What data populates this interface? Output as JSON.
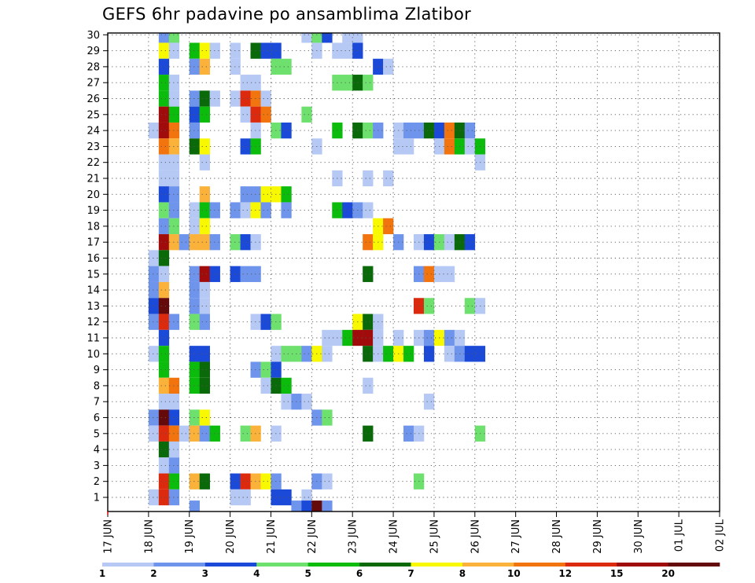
{
  "chart_data": {
    "type": "heatmap",
    "title": "GEFS 6hr padavine po ansamblima Zlatibor",
    "xlabel": "",
    "ylabel": "",
    "x_tick_labels": [
      "17 JUN",
      "18 JUN",
      "19 JUN",
      "20 JUN",
      "21 JUN",
      "22 JUN",
      "23 JUN",
      "24 JUN",
      "25 JUN",
      "26 JUN",
      "27 JUN",
      "28 JUN",
      "29 JUN",
      "30 JUN",
      "01 JUL",
      "02 JUL"
    ],
    "y_members": [
      1,
      2,
      3,
      4,
      5,
      6,
      7,
      8,
      9,
      10,
      11,
      12,
      13,
      14,
      15,
      16,
      17,
      18,
      19,
      20,
      21,
      22,
      23,
      24,
      25,
      26,
      27,
      28,
      29,
      30
    ],
    "y_range": [
      0.3,
      30
    ],
    "steps_per_day": 4,
    "grid": true,
    "color_levels": [
      1,
      2,
      3,
      4,
      5,
      6,
      7,
      8,
      10,
      12,
      15,
      20
    ],
    "colorbar_labels": [
      "1",
      "2",
      "3",
      "4",
      "5",
      "6",
      "7",
      "8",
      "10",
      "12",
      "15",
      "20"
    ],
    "colors": [
      "#b6c8f4",
      "#6e94ec",
      "#1c4ad8",
      "#6ee06e",
      "#0cbc0c",
      "#0a6a0a",
      "#f8f800",
      "#fab23a",
      "#f2740e",
      "#dc2a0e",
      "#a00c0c",
      "#640a0a"
    ],
    "cells": [
      [
        30,
        0,
        5,
        2
      ],
      [
        30,
        0,
        6,
        4
      ],
      [
        30,
        0,
        19,
        1
      ],
      [
        30,
        0,
        20,
        4
      ],
      [
        30,
        0,
        21,
        3
      ],
      [
        30,
        0,
        23,
        1
      ],
      [
        30,
        0,
        24,
        1
      ],
      [
        29,
        0,
        5,
        7
      ],
      [
        29,
        0,
        6,
        1
      ],
      [
        29,
        0,
        8,
        5
      ],
      [
        29,
        0,
        9,
        7
      ],
      [
        29,
        0,
        10,
        1
      ],
      [
        29,
        0,
        12,
        1
      ],
      [
        29,
        0,
        14,
        6
      ],
      [
        29,
        0,
        15,
        3
      ],
      [
        29,
        0,
        16,
        3
      ],
      [
        29,
        0,
        20,
        1
      ],
      [
        29,
        0,
        22,
        1
      ],
      [
        29,
        0,
        23,
        1
      ],
      [
        29,
        0,
        24,
        3
      ],
      [
        28,
        0,
        5,
        3
      ],
      [
        28,
        0,
        8,
        2
      ],
      [
        28,
        0,
        9,
        8
      ],
      [
        28,
        0,
        12,
        1
      ],
      [
        28,
        0,
        16,
        4
      ],
      [
        28,
        0,
        17,
        4
      ],
      [
        28,
        0,
        26,
        3
      ],
      [
        28,
        0,
        27,
        1
      ],
      [
        27,
        0,
        5,
        5
      ],
      [
        27,
        0,
        6,
        1
      ],
      [
        27,
        0,
        13,
        1
      ],
      [
        27,
        0,
        14,
        1
      ],
      [
        27,
        0,
        22,
        4
      ],
      [
        27,
        0,
        23,
        4
      ],
      [
        27,
        0,
        24,
        6
      ],
      [
        27,
        0,
        25,
        4
      ],
      [
        26,
        0,
        5,
        5
      ],
      [
        26,
        0,
        6,
        1
      ],
      [
        26,
        0,
        8,
        2
      ],
      [
        26,
        0,
        9,
        6
      ],
      [
        26,
        0,
        10,
        1
      ],
      [
        26,
        0,
        12,
        1
      ],
      [
        26,
        0,
        13,
        10
      ],
      [
        26,
        0,
        14,
        9
      ],
      [
        26,
        0,
        15,
        1
      ],
      [
        25,
        0,
        5,
        11
      ],
      [
        25,
        0,
        6,
        5
      ],
      [
        25,
        0,
        8,
        3
      ],
      [
        25,
        0,
        9,
        5
      ],
      [
        25,
        0,
        13,
        1
      ],
      [
        25,
        0,
        14,
        10
      ],
      [
        25,
        0,
        15,
        9
      ],
      [
        25,
        0,
        19,
        4
      ],
      [
        24,
        0,
        4,
        1
      ],
      [
        24,
        0,
        5,
        11
      ],
      [
        24,
        0,
        6,
        9
      ],
      [
        24,
        0,
        8,
        2
      ],
      [
        24,
        0,
        14,
        1
      ],
      [
        24,
        0,
        16,
        4
      ],
      [
        24,
        0,
        17,
        3
      ],
      [
        24,
        0,
        22,
        5
      ],
      [
        24,
        0,
        24,
        6
      ],
      [
        24,
        0,
        25,
        4
      ],
      [
        24,
        0,
        26,
        2
      ],
      [
        24,
        0,
        28,
        1
      ],
      [
        24,
        0,
        29,
        2
      ],
      [
        24,
        0,
        30,
        2
      ],
      [
        24,
        0,
        31,
        6
      ],
      [
        24,
        0,
        32,
        3
      ],
      [
        24,
        0,
        33,
        9
      ],
      [
        24,
        0,
        34,
        6
      ],
      [
        24,
        0,
        35,
        2
      ],
      [
        23,
        0,
        5,
        9
      ],
      [
        23,
        0,
        6,
        8
      ],
      [
        23,
        0,
        8,
        6
      ],
      [
        23,
        0,
        9,
        7
      ],
      [
        23,
        0,
        13,
        3
      ],
      [
        23,
        0,
        14,
        5
      ],
      [
        23,
        0,
        20,
        1
      ],
      [
        23,
        0,
        28,
        1
      ],
      [
        23,
        0,
        29,
        1
      ],
      [
        23,
        0,
        32,
        1
      ],
      [
        23,
        0,
        33,
        9
      ],
      [
        23,
        0,
        34,
        5
      ],
      [
        23,
        0,
        35,
        1
      ],
      [
        23,
        0,
        36,
        5
      ],
      [
        22,
        0,
        5,
        1
      ],
      [
        22,
        0,
        6,
        1
      ],
      [
        22,
        0,
        9,
        1
      ],
      [
        22,
        0,
        36,
        1
      ],
      [
        21,
        0,
        5,
        1
      ],
      [
        21,
        0,
        6,
        1
      ],
      [
        21,
        0,
        22,
        1
      ],
      [
        21,
        0,
        25,
        1
      ],
      [
        21,
        0,
        27,
        1
      ],
      [
        20,
        0,
        5,
        3
      ],
      [
        20,
        0,
        6,
        2
      ],
      [
        20,
        0,
        9,
        8
      ],
      [
        20,
        0,
        13,
        2
      ],
      [
        20,
        0,
        14,
        2
      ],
      [
        20,
        0,
        15,
        7
      ],
      [
        20,
        0,
        16,
        7
      ],
      [
        20,
        0,
        17,
        5
      ],
      [
        19,
        0,
        5,
        4
      ],
      [
        19,
        0,
        6,
        2
      ],
      [
        19,
        0,
        8,
        1
      ],
      [
        19,
        0,
        9,
        5
      ],
      [
        19,
        0,
        10,
        2
      ],
      [
        19,
        0,
        12,
        2
      ],
      [
        19,
        0,
        13,
        1
      ],
      [
        19,
        0,
        14,
        7
      ],
      [
        19,
        0,
        15,
        2
      ],
      [
        19,
        0,
        17,
        2
      ],
      [
        19,
        0,
        22,
        5
      ],
      [
        19,
        0,
        23,
        3
      ],
      [
        19,
        0,
        24,
        2
      ],
      [
        19,
        0,
        25,
        1
      ],
      [
        18,
        0,
        5,
        2
      ],
      [
        18,
        0,
        6,
        4
      ],
      [
        18,
        0,
        8,
        1
      ],
      [
        18,
        0,
        9,
        7
      ],
      [
        18,
        0,
        26,
        7
      ],
      [
        18,
        0,
        27,
        9
      ],
      [
        17,
        0,
        5,
        11
      ],
      [
        17,
        0,
        6,
        8
      ],
      [
        17,
        0,
        7,
        2
      ],
      [
        17,
        0,
        8,
        8
      ],
      [
        17,
        0,
        9,
        8
      ],
      [
        17,
        0,
        10,
        2
      ],
      [
        17,
        0,
        12,
        4
      ],
      [
        17,
        0,
        13,
        3
      ],
      [
        17,
        0,
        14,
        1
      ],
      [
        17,
        0,
        25,
        9
      ],
      [
        17,
        0,
        26,
        7
      ],
      [
        17,
        0,
        28,
        2
      ],
      [
        17,
        0,
        30,
        1
      ],
      [
        17,
        0,
        31,
        3
      ],
      [
        17,
        0,
        32,
        4
      ],
      [
        17,
        0,
        33,
        1
      ],
      [
        17,
        0,
        34,
        6
      ],
      [
        17,
        0,
        35,
        3
      ],
      [
        16,
        0,
        4,
        1
      ],
      [
        16,
        0,
        5,
        6
      ],
      [
        15,
        0,
        4,
        2
      ],
      [
        15,
        0,
        5,
        1
      ],
      [
        15,
        0,
        8,
        2
      ],
      [
        15,
        0,
        9,
        11
      ],
      [
        15,
        0,
        10,
        3
      ],
      [
        15,
        0,
        12,
        3
      ],
      [
        15,
        0,
        13,
        2
      ],
      [
        15,
        0,
        14,
        2
      ],
      [
        15,
        0,
        25,
        6
      ],
      [
        15,
        0,
        30,
        2
      ],
      [
        15,
        0,
        31,
        9
      ],
      [
        15,
        0,
        32,
        1
      ],
      [
        15,
        0,
        33,
        1
      ],
      [
        14,
        0,
        4,
        2
      ],
      [
        14,
        0,
        5,
        8
      ],
      [
        14,
        0,
        8,
        2
      ],
      [
        14,
        0,
        9,
        1
      ],
      [
        13,
        0,
        4,
        3
      ],
      [
        13,
        0,
        5,
        12
      ],
      [
        13,
        0,
        8,
        2
      ],
      [
        13,
        0,
        9,
        1
      ],
      [
        13,
        0,
        30,
        10
      ],
      [
        13,
        0,
        31,
        4
      ],
      [
        13,
        0,
        35,
        4
      ],
      [
        13,
        0,
        36,
        1
      ],
      [
        12,
        0,
        4,
        2
      ],
      [
        12,
        0,
        5,
        10
      ],
      [
        12,
        0,
        6,
        2
      ],
      [
        12,
        0,
        8,
        4
      ],
      [
        12,
        0,
        9,
        2
      ],
      [
        12,
        0,
        14,
        1
      ],
      [
        12,
        0,
        15,
        3
      ],
      [
        12,
        0,
        16,
        4
      ],
      [
        12,
        0,
        24,
        7
      ],
      [
        12,
        0,
        25,
        6
      ],
      [
        12,
        0,
        26,
        1
      ],
      [
        11,
        0,
        5,
        3
      ],
      [
        11,
        0,
        21,
        1
      ],
      [
        11,
        0,
        22,
        1
      ],
      [
        11,
        0,
        23,
        5
      ],
      [
        11,
        0,
        24,
        11
      ],
      [
        11,
        0,
        25,
        11
      ],
      [
        11,
        0,
        26,
        1
      ],
      [
        11,
        0,
        28,
        1
      ],
      [
        11,
        0,
        30,
        1
      ],
      [
        11,
        0,
        31,
        2
      ],
      [
        11,
        0,
        32,
        7
      ],
      [
        11,
        0,
        33,
        2
      ],
      [
        11,
        0,
        34,
        1
      ],
      [
        10,
        0,
        4,
        1
      ],
      [
        10,
        0,
        5,
        5
      ],
      [
        10,
        0,
        8,
        3
      ],
      [
        10,
        0,
        9,
        3
      ],
      [
        10,
        0,
        16,
        1
      ],
      [
        10,
        0,
        17,
        4
      ],
      [
        10,
        0,
        18,
        4
      ],
      [
        10,
        0,
        19,
        2
      ],
      [
        10,
        0,
        20,
        7
      ],
      [
        10,
        0,
        21,
        1
      ],
      [
        10,
        0,
        25,
        6
      ],
      [
        10,
        0,
        26,
        1
      ],
      [
        10,
        0,
        27,
        5
      ],
      [
        10,
        0,
        28,
        7
      ],
      [
        10,
        0,
        29,
        5
      ],
      [
        10,
        0,
        31,
        3
      ],
      [
        10,
        0,
        33,
        1
      ],
      [
        10,
        0,
        34,
        2
      ],
      [
        10,
        0,
        35,
        3
      ],
      [
        10,
        0,
        36,
        3
      ],
      [
        9,
        0,
        5,
        5
      ],
      [
        9,
        0,
        8,
        5
      ],
      [
        9,
        0,
        9,
        6
      ],
      [
        9,
        0,
        14,
        2
      ],
      [
        9,
        0,
        15,
        4
      ],
      [
        9,
        0,
        16,
        3
      ],
      [
        8,
        0,
        5,
        8
      ],
      [
        8,
        0,
        6,
        9
      ],
      [
        8,
        0,
        8,
        5
      ],
      [
        8,
        0,
        9,
        6
      ],
      [
        8,
        0,
        15,
        1
      ],
      [
        8,
        0,
        16,
        6
      ],
      [
        8,
        0,
        17,
        5
      ],
      [
        8,
        0,
        25,
        1
      ],
      [
        7,
        0,
        5,
        1
      ],
      [
        7,
        0,
        6,
        1
      ],
      [
        7,
        0,
        17,
        1
      ],
      [
        7,
        0,
        18,
        2
      ],
      [
        7,
        0,
        19,
        1
      ],
      [
        7,
        0,
        31,
        1
      ],
      [
        6,
        0,
        4,
        2
      ],
      [
        6,
        0,
        5,
        12
      ],
      [
        6,
        0,
        6,
        3
      ],
      [
        6,
        0,
        8,
        4
      ],
      [
        6,
        0,
        9,
        7
      ],
      [
        6,
        0,
        20,
        2
      ],
      [
        6,
        0,
        21,
        4
      ],
      [
        5,
        0,
        4,
        1
      ],
      [
        5,
        0,
        5,
        10
      ],
      [
        5,
        0,
        6,
        9
      ],
      [
        5,
        0,
        7,
        1
      ],
      [
        5,
        0,
        8,
        8
      ],
      [
        5,
        0,
        9,
        2
      ],
      [
        5,
        0,
        10,
        5
      ],
      [
        5,
        0,
        13,
        4
      ],
      [
        5,
        0,
        14,
        8
      ],
      [
        5,
        0,
        16,
        1
      ],
      [
        5,
        0,
        25,
        6
      ],
      [
        5,
        0,
        29,
        2
      ],
      [
        5,
        0,
        30,
        1
      ],
      [
        5,
        0,
        36,
        4
      ],
      [
        4,
        0,
        5,
        6
      ],
      [
        4,
        0,
        6,
        1
      ],
      [
        3,
        0,
        5,
        1
      ],
      [
        3,
        0,
        6,
        2
      ],
      [
        2,
        0,
        5,
        10
      ],
      [
        2,
        0,
        6,
        5
      ],
      [
        2,
        0,
        8,
        8
      ],
      [
        2,
        0,
        9,
        6
      ],
      [
        2,
        0,
        12,
        3
      ],
      [
        2,
        0,
        13,
        10
      ],
      [
        2,
        0,
        14,
        8
      ],
      [
        2,
        0,
        15,
        7
      ],
      [
        2,
        0,
        16,
        2
      ],
      [
        2,
        0,
        20,
        2
      ],
      [
        2,
        0,
        21,
        1
      ],
      [
        2,
        0,
        30,
        4
      ],
      [
        1,
        0,
        4,
        1
      ],
      [
        1,
        0,
        5,
        10
      ],
      [
        1,
        0,
        6,
        2
      ],
      [
        1,
        0,
        12,
        1
      ],
      [
        1,
        0,
        13,
        1
      ],
      [
        1,
        0,
        16,
        3
      ],
      [
        1,
        0,
        17,
        3
      ],
      [
        1,
        0,
        19,
        1
      ],
      [
        0.3,
        0,
        8,
        2
      ],
      [
        0.3,
        0,
        18,
        2
      ],
      [
        0.3,
        0,
        19,
        3
      ],
      [
        0.3,
        0,
        20,
        12
      ],
      [
        0.3,
        0,
        21,
        2
      ]
    ]
  }
}
